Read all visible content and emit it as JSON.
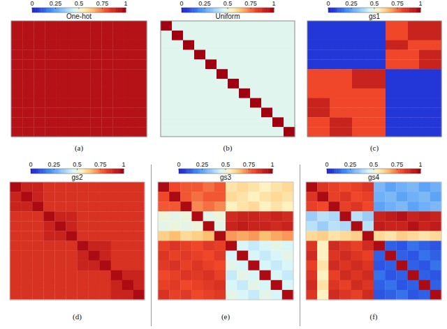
{
  "chart_data": [
    {
      "type": "heatmap",
      "title": "One-hot",
      "caption": "(a)",
      "tick_labels": false,
      "color_range": [
        0,
        1
      ],
      "color_ticks": [
        0,
        0.25,
        0.5,
        0.75,
        1
      ],
      "cells": [
        [
          0.95,
          0.95,
          0.95,
          0.95,
          0.95,
          0.95,
          0.95,
          0.95,
          0.95,
          0.95,
          0.95,
          0.95
        ],
        [
          0.95,
          0.95,
          0.95,
          0.95,
          0.95,
          0.95,
          0.95,
          0.95,
          0.95,
          0.95,
          0.95,
          0.95
        ],
        [
          0.95,
          0.95,
          0.95,
          0.95,
          0.95,
          0.95,
          0.95,
          0.95,
          0.95,
          0.95,
          0.95,
          0.95
        ],
        [
          0.95,
          0.95,
          0.95,
          0.95,
          0.95,
          0.95,
          0.95,
          0.95,
          0.95,
          0.95,
          0.95,
          0.95
        ],
        [
          0.95,
          0.95,
          0.95,
          0.95,
          0.95,
          0.95,
          0.95,
          0.95,
          0.95,
          0.95,
          0.95,
          0.95
        ],
        [
          0.95,
          0.95,
          0.95,
          0.95,
          0.95,
          0.95,
          0.95,
          0.95,
          0.95,
          0.95,
          0.95,
          0.95
        ],
        [
          0.95,
          0.95,
          0.95,
          0.95,
          0.95,
          0.95,
          0.95,
          0.95,
          0.95,
          0.95,
          0.95,
          0.95
        ],
        [
          0.95,
          0.95,
          0.95,
          0.95,
          0.95,
          0.95,
          0.95,
          0.95,
          0.95,
          0.95,
          0.95,
          0.95
        ],
        [
          0.95,
          0.95,
          0.95,
          0.95,
          0.95,
          0.95,
          0.95,
          0.95,
          0.95,
          0.95,
          0.95,
          0.95
        ],
        [
          0.95,
          0.95,
          0.95,
          0.95,
          0.95,
          0.95,
          0.95,
          0.95,
          0.95,
          0.95,
          0.95,
          0.95
        ],
        [
          0.95,
          0.95,
          0.95,
          0.95,
          0.95,
          0.95,
          0.95,
          0.95,
          0.95,
          0.95,
          0.95,
          0.95
        ],
        [
          0.95,
          0.95,
          0.95,
          0.95,
          0.95,
          0.95,
          0.95,
          0.95,
          0.95,
          0.95,
          0.95,
          0.95
        ]
      ]
    },
    {
      "type": "heatmap",
      "title": "Uniform",
      "caption": "(b)",
      "tick_labels": false,
      "color_range": [
        0,
        1
      ],
      "color_ticks": [
        0,
        0.25,
        0.5,
        0.75,
        1
      ],
      "cells": [
        [
          1,
          0.47,
          0.47,
          0.47,
          0.47,
          0.47,
          0.47,
          0.47,
          0.47,
          0.47,
          0.47,
          0.47
        ],
        [
          0.47,
          1,
          0.47,
          0.47,
          0.47,
          0.47,
          0.47,
          0.47,
          0.47,
          0.47,
          0.47,
          0.47
        ],
        [
          0.47,
          0.47,
          1,
          0.47,
          0.47,
          0.47,
          0.47,
          0.47,
          0.47,
          0.47,
          0.47,
          0.47
        ],
        [
          0.47,
          0.47,
          0.47,
          1,
          0.47,
          0.47,
          0.47,
          0.47,
          0.47,
          0.47,
          0.47,
          0.47
        ],
        [
          0.47,
          0.47,
          0.47,
          0.47,
          1,
          0.47,
          0.47,
          0.47,
          0.47,
          0.47,
          0.47,
          0.47
        ],
        [
          0.47,
          0.47,
          0.47,
          0.47,
          0.47,
          1,
          0.47,
          0.47,
          0.47,
          0.47,
          0.47,
          0.47
        ],
        [
          0.47,
          0.47,
          0.47,
          0.47,
          0.47,
          0.47,
          1,
          0.47,
          0.47,
          0.47,
          0.47,
          0.47
        ],
        [
          0.47,
          0.47,
          0.47,
          0.47,
          0.47,
          0.47,
          0.47,
          1,
          0.47,
          0.47,
          0.47,
          0.47
        ],
        [
          0.47,
          0.47,
          0.47,
          0.47,
          0.47,
          0.47,
          0.47,
          0.47,
          1,
          0.47,
          0.47,
          0.47
        ],
        [
          0.47,
          0.47,
          0.47,
          0.47,
          0.47,
          0.47,
          0.47,
          0.47,
          0.47,
          1,
          0.47,
          0.47
        ],
        [
          0.47,
          0.47,
          0.47,
          0.47,
          0.47,
          0.47,
          0.47,
          0.47,
          0.47,
          0.47,
          1,
          0.47
        ],
        [
          0.47,
          0.47,
          0.47,
          0.47,
          0.47,
          0.47,
          0.47,
          0.47,
          0.47,
          0.47,
          0.47,
          1
        ]
      ]
    },
    {
      "type": "heatmap",
      "title": "gs1",
      "caption": "(c)",
      "tick_labels": false,
      "color_range": [
        0,
        1
      ],
      "color_ticks": [
        0,
        0.25,
        0.5,
        0.75,
        1
      ],
      "cells": [
        [
          0.05,
          0.05,
          0.05,
          0.05,
          0.05,
          0.05,
          0.05,
          0.8,
          0.8,
          0.9,
          0.9,
          0.9
        ],
        [
          0.05,
          0.05,
          0.05,
          0.05,
          0.05,
          0.05,
          0.05,
          0.8,
          0.8,
          0.9,
          0.9,
          0.9
        ],
        [
          0.05,
          0.05,
          0.05,
          0.05,
          0.05,
          0.05,
          0.05,
          0.9,
          0.9,
          0.8,
          0.8,
          0.8
        ],
        [
          0.05,
          0.05,
          0.05,
          0.05,
          0.05,
          0.05,
          0.05,
          0.8,
          0.8,
          0.8,
          0.9,
          0.9
        ],
        [
          0.05,
          0.05,
          0.05,
          0.05,
          0.05,
          0.05,
          0.05,
          0.8,
          0.8,
          0.8,
          0.9,
          0.9
        ],
        [
          0.8,
          0.8,
          0.8,
          0.8,
          0.9,
          0.9,
          0.9,
          0.05,
          0.05,
          0.05,
          0.05,
          0.05
        ],
        [
          0.8,
          0.8,
          0.8,
          0.8,
          0.9,
          0.9,
          0.9,
          0.05,
          0.05,
          0.05,
          0.05,
          0.05
        ],
        [
          0.8,
          0.8,
          0.8,
          0.8,
          0.8,
          0.8,
          0.8,
          0.05,
          0.05,
          0.05,
          0.05,
          0.05
        ],
        [
          0.9,
          0.9,
          0.8,
          0.8,
          0.8,
          0.8,
          0.8,
          0.05,
          0.05,
          0.05,
          0.05,
          0.05
        ],
        [
          0.9,
          0.9,
          0.8,
          0.8,
          0.8,
          0.8,
          0.8,
          0.05,
          0.05,
          0.05,
          0.05,
          0.05
        ],
        [
          0.8,
          0.8,
          0.9,
          0.9,
          0.8,
          0.8,
          0.8,
          0.05,
          0.05,
          0.05,
          0.05,
          0.05
        ],
        [
          0.8,
          0.8,
          0.9,
          0.9,
          0.8,
          0.8,
          0.8,
          0.05,
          0.05,
          0.05,
          0.05,
          0.05
        ]
      ]
    },
    {
      "type": "heatmap",
      "title": "gs2",
      "caption": "(d)",
      "tick_labels": false,
      "color_range": [
        0,
        1
      ],
      "color_ticks": [
        0,
        0.25,
        0.5,
        0.75,
        1
      ],
      "cells": [
        [
          0.97,
          0.9,
          0.9,
          0.86,
          0.86,
          0.86,
          0.86,
          0.86,
          0.86,
          0.86,
          0.86,
          0.86
        ],
        [
          0.9,
          0.97,
          0.9,
          0.86,
          0.86,
          0.86,
          0.86,
          0.86,
          0.86,
          0.86,
          0.86,
          0.86
        ],
        [
          0.9,
          0.9,
          0.97,
          0.86,
          0.86,
          0.86,
          0.86,
          0.86,
          0.86,
          0.86,
          0.86,
          0.86
        ],
        [
          0.86,
          0.86,
          0.86,
          0.97,
          0.9,
          0.9,
          0.86,
          0.86,
          0.86,
          0.86,
          0.86,
          0.86
        ],
        [
          0.86,
          0.86,
          0.86,
          0.9,
          0.97,
          0.9,
          0.86,
          0.86,
          0.86,
          0.86,
          0.86,
          0.86
        ],
        [
          0.86,
          0.86,
          0.86,
          0.9,
          0.9,
          0.97,
          0.86,
          0.86,
          0.86,
          0.86,
          0.86,
          0.86
        ],
        [
          0.86,
          0.86,
          0.86,
          0.86,
          0.86,
          0.86,
          0.97,
          0.9,
          0.9,
          0.86,
          0.86,
          0.86
        ],
        [
          0.86,
          0.86,
          0.86,
          0.86,
          0.86,
          0.86,
          0.9,
          0.97,
          0.9,
          0.86,
          0.86,
          0.86
        ],
        [
          0.86,
          0.86,
          0.86,
          0.86,
          0.86,
          0.86,
          0.9,
          0.9,
          0.97,
          0.86,
          0.86,
          0.86
        ],
        [
          0.86,
          0.86,
          0.86,
          0.86,
          0.86,
          0.86,
          0.86,
          0.86,
          0.86,
          0.97,
          0.9,
          0.9
        ],
        [
          0.86,
          0.86,
          0.86,
          0.86,
          0.86,
          0.86,
          0.86,
          0.86,
          0.86,
          0.9,
          0.97,
          0.9
        ],
        [
          0.86,
          0.86,
          0.86,
          0.86,
          0.86,
          0.86,
          0.86,
          0.86,
          0.86,
          0.9,
          0.9,
          0.97
        ]
      ]
    },
    {
      "type": "heatmap",
      "title": "gs3",
      "caption": "(e)",
      "tick_labels": false,
      "color_range": [
        0,
        1
      ],
      "color_ticks": [
        0,
        0.25,
        0.5,
        0.75,
        1
      ],
      "cells": [
        [
          0.97,
          0.8,
          0.78,
          0.78,
          0.75,
          0.78,
          0.58,
          0.6,
          0.58,
          0.55,
          0.58,
          0.6
        ],
        [
          0.8,
          0.97,
          0.78,
          0.75,
          0.78,
          0.78,
          0.6,
          0.58,
          0.55,
          0.58,
          0.6,
          0.58
        ],
        [
          0.78,
          0.78,
          0.97,
          0.72,
          0.75,
          0.72,
          0.55,
          0.58,
          0.6,
          0.55,
          0.58,
          0.55
        ],
        [
          0.5,
          0.48,
          0.5,
          0.97,
          0.48,
          0.5,
          0.88,
          0.9,
          0.9,
          0.88,
          0.9,
          0.88
        ],
        [
          0.48,
          0.5,
          0.48,
          0.5,
          0.97,
          0.48,
          0.9,
          0.92,
          0.9,
          0.9,
          0.88,
          0.9
        ],
        [
          0.62,
          0.65,
          0.6,
          0.62,
          0.65,
          0.97,
          0.7,
          0.68,
          0.7,
          0.65,
          0.68,
          0.7
        ],
        [
          0.82,
          0.85,
          0.82,
          0.8,
          0.84,
          0.82,
          0.97,
          0.45,
          0.42,
          0.45,
          0.48,
          0.45
        ],
        [
          0.85,
          0.82,
          0.84,
          0.82,
          0.8,
          0.84,
          0.45,
          0.97,
          0.45,
          0.42,
          0.45,
          0.48
        ],
        [
          0.84,
          0.86,
          0.82,
          0.85,
          0.82,
          0.8,
          0.48,
          0.45,
          0.97,
          0.45,
          0.42,
          0.45
        ],
        [
          0.8,
          0.82,
          0.85,
          0.84,
          0.86,
          0.82,
          0.42,
          0.48,
          0.45,
          0.97,
          0.45,
          0.42
        ],
        [
          0.82,
          0.84,
          0.8,
          0.82,
          0.84,
          0.86,
          0.45,
          0.42,
          0.48,
          0.45,
          0.97,
          0.45
        ],
        [
          0.86,
          0.82,
          0.84,
          0.8,
          0.82,
          0.84,
          0.48,
          0.45,
          0.42,
          0.48,
          0.45,
          0.97
        ]
      ]
    },
    {
      "type": "heatmap",
      "title": "gs4",
      "caption": "(f)",
      "tick_labels": false,
      "color_range": [
        0,
        1
      ],
      "color_ticks": [
        0,
        0.25,
        0.5,
        0.75,
        1
      ],
      "cells": [
        [
          0.97,
          0.85,
          0.82,
          0.8,
          0.82,
          0.85,
          0.3,
          0.25,
          0.28,
          0.3,
          0.25,
          0.28
        ],
        [
          0.85,
          0.97,
          0.82,
          0.85,
          0.8,
          0.82,
          0.28,
          0.3,
          0.25,
          0.28,
          0.3,
          0.25
        ],
        [
          0.82,
          0.8,
          0.97,
          0.82,
          0.85,
          0.8,
          0.25,
          0.28,
          0.3,
          0.25,
          0.28,
          0.3
        ],
        [
          0.35,
          0.4,
          0.38,
          0.97,
          0.4,
          0.35,
          0.9,
          0.92,
          0.95,
          0.9,
          0.92,
          0.9
        ],
        [
          0.4,
          0.35,
          0.4,
          0.38,
          0.97,
          0.4,
          0.92,
          0.9,
          0.9,
          0.95,
          0.9,
          0.92
        ],
        [
          0.6,
          0.62,
          0.58,
          0.6,
          0.62,
          0.97,
          0.6,
          0.58,
          0.62,
          0.6,
          0.58,
          0.6
        ],
        [
          0.85,
          0.55,
          0.88,
          0.85,
          0.82,
          0.88,
          0.97,
          0.12,
          0.1,
          0.15,
          0.12,
          0.1
        ],
        [
          0.88,
          0.55,
          0.85,
          0.88,
          0.85,
          0.82,
          0.12,
          0.97,
          0.12,
          0.1,
          0.15,
          0.12
        ],
        [
          0.82,
          0.58,
          0.88,
          0.85,
          0.88,
          0.85,
          0.1,
          0.12,
          0.97,
          0.12,
          0.1,
          0.15
        ],
        [
          0.85,
          0.55,
          0.82,
          0.88,
          0.85,
          0.88,
          0.15,
          0.1,
          0.12,
          0.97,
          0.12,
          0.1
        ],
        [
          0.88,
          0.58,
          0.85,
          0.82,
          0.88,
          0.85,
          0.12,
          0.15,
          0.1,
          0.12,
          0.97,
          0.12
        ],
        [
          0.85,
          0.55,
          0.88,
          0.85,
          0.82,
          0.88,
          0.1,
          0.12,
          0.15,
          0.1,
          0.12,
          0.97
        ]
      ]
    }
  ]
}
